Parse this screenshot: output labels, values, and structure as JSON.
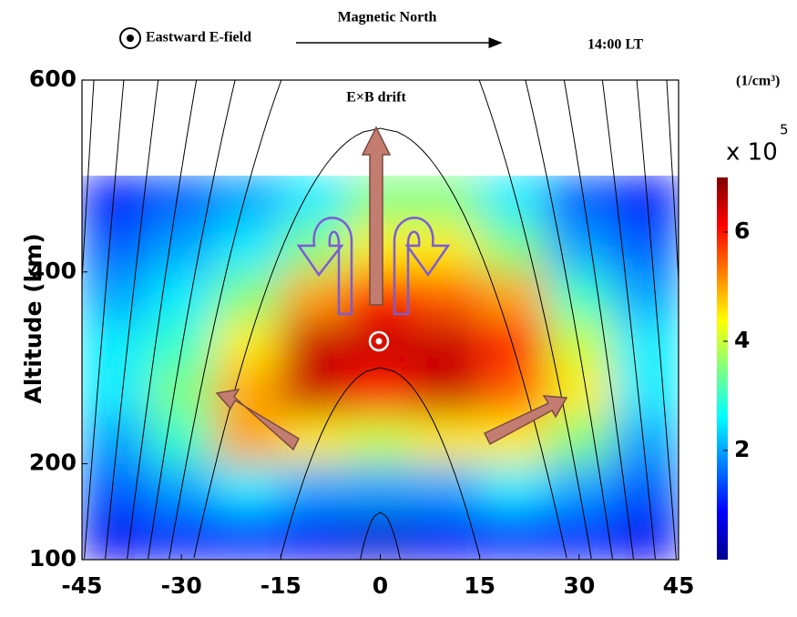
{
  "chart_data": {
    "type": "heatmap",
    "legend_items": [
      "Eastward E-field"
    ],
    "annotations": {
      "direction": "Magnetic North",
      "time": "14:00 LT",
      "drift": "E×B drift"
    },
    "ylabel": "Altitude (km)",
    "xlim": [
      -45,
      45
    ],
    "xticks": [
      -45,
      -30,
      -15,
      0,
      15,
      30,
      45
    ],
    "ylim": [
      100,
      600
    ],
    "yticks": [
      100,
      200,
      400,
      600
    ],
    "x": [
      -40,
      -30,
      -20,
      -10,
      0,
      10,
      20,
      30,
      40
    ],
    "y": [
      475,
      425,
      375,
      325,
      275,
      225,
      175,
      125
    ],
    "z": [
      [
        1,
        1.5,
        2,
        2.5,
        3.5,
        3.5,
        2.5,
        1.5,
        1
      ],
      [
        1.5,
        2,
        2.5,
        3.5,
        4.5,
        4.5,
        3.5,
        2,
        1.5
      ],
      [
        2,
        2.5,
        3.5,
        5,
        6,
        5.5,
        5,
        3,
        2
      ],
      [
        2.5,
        3,
        4.5,
        6.5,
        6.5,
        6.5,
        6,
        4,
        2.5
      ],
      [
        2.5,
        3.5,
        5,
        6.5,
        6,
        6.5,
        5.5,
        4.5,
        2.5
      ],
      [
        2,
        3,
        5,
        4.5,
        4,
        4.5,
        4.5,
        3.5,
        2
      ],
      [
        1.5,
        2,
        2.5,
        2,
        2,
        2,
        2.5,
        2,
        1.5
      ],
      [
        0.8,
        1,
        1,
        0.8,
        0.6,
        0.8,
        1,
        1,
        0.8
      ]
    ],
    "colormap": "jet",
    "clim": [
      0,
      7
    ],
    "cticks": [
      2,
      4,
      6
    ],
    "colorbar_unit": "(1/cm³)",
    "colorbar_multiplier": "x 10",
    "colorbar_exponent": "5"
  }
}
